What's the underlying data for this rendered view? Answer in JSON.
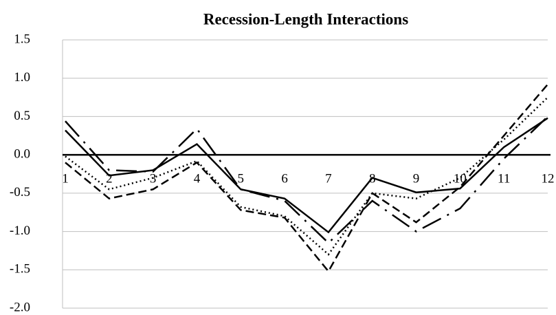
{
  "chart_data": {
    "type": "line",
    "title": "Recession-Length Interactions",
    "categories": [
      "1",
      "2",
      "3",
      "4",
      "5",
      "6",
      "7",
      "8",
      "9",
      "10",
      "11",
      "12"
    ],
    "series": [
      {
        "color": "#000000",
        "dash": "solid",
        "values": [
          0.32,
          -0.27,
          -0.2,
          0.14,
          -0.45,
          -0.57,
          -1.01,
          -0.3,
          -0.49,
          -0.44,
          0.1,
          0.48
        ]
      },
      {
        "color": "#000000",
        "dash": "dotted",
        "values": [
          -0.02,
          -0.45,
          -0.3,
          -0.08,
          -0.68,
          -0.8,
          -1.3,
          -0.5,
          -0.57,
          -0.3,
          0.2,
          0.75
        ]
      },
      {
        "color": "#000000",
        "dash": "dashed",
        "values": [
          -0.1,
          -0.57,
          -0.45,
          -0.1,
          -0.72,
          -0.82,
          -1.52,
          -0.5,
          -0.88,
          -0.42,
          0.25,
          0.92
        ]
      },
      {
        "color": "#000000",
        "dash": "long-dash-dot",
        "values": [
          0.44,
          -0.2,
          -0.22,
          0.34,
          -0.45,
          -0.6,
          -1.15,
          -0.6,
          -1.0,
          -0.7,
          -0.05,
          0.5
        ]
      }
    ],
    "ylim": [
      -2,
      1.5
    ],
    "yticks": [
      {
        "value": -2,
        "label": "-2.0"
      },
      -1.5,
      {
        "value": -1,
        "label": "-1.0"
      },
      -0.5,
      {
        "value": 0,
        "label": "0.0"
      },
      0.5,
      {
        "value": 1,
        "label": "1.0"
      },
      1.5
    ],
    "grid": true
  }
}
